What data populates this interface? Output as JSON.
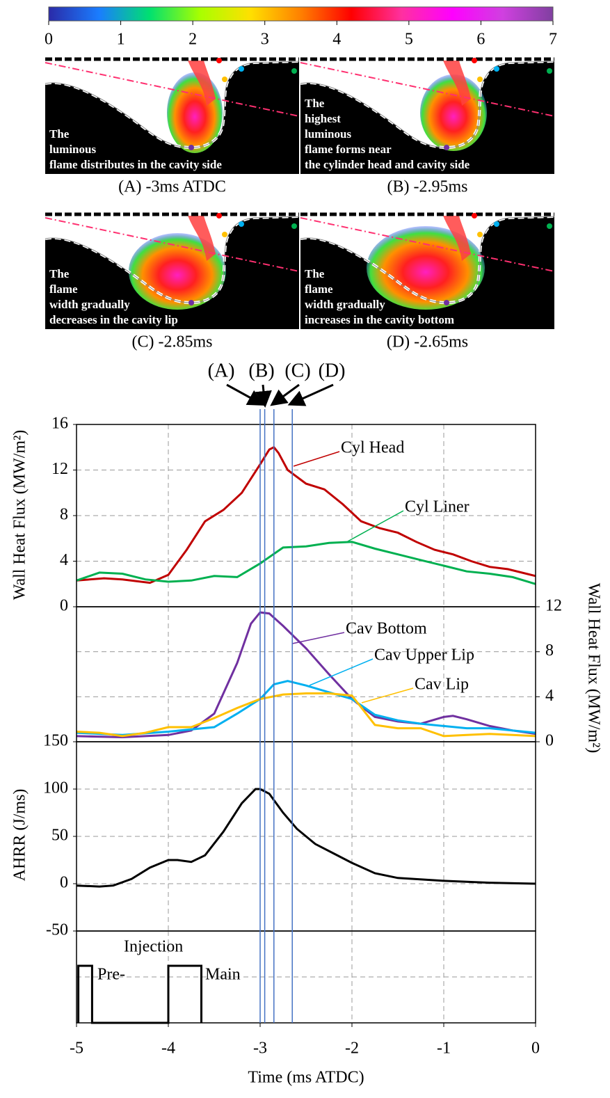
{
  "panels": [
    {
      "caption": "(A) -3ms ATDC",
      "text": [
        "The",
        "luminous",
        "flame distributes in the cavity side"
      ]
    },
    {
      "caption": "(B) -2.95ms",
      "text": [
        "The",
        "highest",
        "luminous",
        "flame forms near",
        "the cylinder head and cavity side"
      ]
    },
    {
      "caption": "(C) -2.85ms",
      "text": [
        "The",
        "flame",
        "width gradually",
        "decreases in the cavity lip"
      ]
    },
    {
      "caption": "(D) -2.65ms",
      "text": [
        "The",
        "flame",
        "width gradually",
        "increases in the cavity bottom"
      ]
    }
  ],
  "chart_data": [
    {
      "type": "colorbar",
      "xlim": [
        0,
        7
      ],
      "xticks": [
        0,
        1,
        2,
        3,
        4,
        5,
        6,
        7
      ],
      "colors": [
        "#2a2aa8",
        "#1a7dff",
        "#00e070",
        "#a8ff00",
        "#ffe000",
        "#ff8000",
        "#ff0000",
        "#ff30a0",
        "#ff00ff",
        "#d040e0",
        "#8040a0"
      ]
    },
    {
      "type": "line",
      "ylabel": "Wall Heat Flux (MW/m²)",
      "ylim": [
        0,
        16
      ],
      "yticks": [
        0,
        4,
        8,
        12,
        16
      ],
      "grid": true,
      "markers": [
        {
          "label": "(A)",
          "x": -3
        },
        {
          "label": "(B)",
          "x": -2.95
        },
        {
          "label": "(C)",
          "x": -2.85
        },
        {
          "label": "(D)",
          "x": -2.65
        }
      ],
      "series": [
        {
          "name": "Cyl Head",
          "color": "#c00000",
          "x": [
            -5,
            -4.7,
            -4.5,
            -4.2,
            -4,
            -3.8,
            -3.6,
            -3.4,
            -3.2,
            -3,
            -2.9,
            -2.85,
            -2.8,
            -2.7,
            -2.5,
            -2.3,
            -2.1,
            -1.9,
            -1.7,
            -1.5,
            -1.3,
            -1.1,
            -0.9,
            -0.7,
            -0.5,
            -0.3,
            0
          ],
          "values": [
            2.3,
            2.5,
            2.4,
            2.1,
            2.8,
            5,
            7.5,
            8.5,
            10,
            12.5,
            13.8,
            14,
            13.5,
            12,
            10.8,
            10.3,
            9,
            7.5,
            6.9,
            6.5,
            5.7,
            5,
            4.6,
            4,
            3.5,
            3.3,
            2.7
          ]
        },
        {
          "name": "Cyl Liner",
          "color": "#00b050",
          "x": [
            -5,
            -4.75,
            -4.5,
            -4.25,
            -4,
            -3.75,
            -3.5,
            -3.25,
            -3,
            -2.75,
            -2.5,
            -2.25,
            -2,
            -1.75,
            -1.5,
            -1.25,
            -1,
            -0.75,
            -0.5,
            -0.25,
            0
          ],
          "values": [
            2.3,
            3,
            2.9,
            2.4,
            2.2,
            2.3,
            2.7,
            2.6,
            3.8,
            5.2,
            5.3,
            5.6,
            5.7,
            5.1,
            4.6,
            4.1,
            3.6,
            3.1,
            2.9,
            2.6,
            2
          ]
        }
      ]
    },
    {
      "type": "line",
      "ylabel": "Wall Heat Flux (MW/m²)",
      "ylim": [
        0,
        12
      ],
      "yticks": [
        0,
        4,
        8,
        12
      ],
      "grid": true,
      "series": [
        {
          "name": "Cav Bottom",
          "color": "#7030a0",
          "x": [
            -5,
            -4.5,
            -4,
            -3.75,
            -3.5,
            -3.25,
            -3.1,
            -3,
            -2.9,
            -2.75,
            -2.5,
            -2.25,
            -2,
            -1.75,
            -1.5,
            -1.25,
            -1,
            -0.9,
            -0.75,
            -0.5,
            -0.25,
            0
          ],
          "values": [
            0.5,
            0.4,
            0.6,
            1,
            2.5,
            7,
            10.5,
            11.5,
            11.4,
            10.3,
            8.3,
            6,
            3.8,
            2.2,
            1.8,
            1.6,
            2.2,
            2.3,
            2,
            1.4,
            1,
            0.7
          ]
        },
        {
          "name": "Cav Upper Lip",
          "color": "#00b0f0",
          "x": [
            -5,
            -4.5,
            -4,
            -3.5,
            -3.25,
            -3,
            -2.85,
            -2.7,
            -2.5,
            -2.25,
            -2,
            -1.75,
            -1.5,
            -1.25,
            -1,
            -0.75,
            -0.5,
            0
          ],
          "values": [
            0.8,
            0.6,
            0.9,
            1.3,
            2.5,
            3.8,
            5.1,
            5.4,
            5,
            4.4,
            3.8,
            2.4,
            1.9,
            1.6,
            1.4,
            1.2,
            1.2,
            0.8
          ]
        },
        {
          "name": "Cav Lip",
          "color": "#ffc000",
          "x": [
            -5,
            -4.75,
            -4.5,
            -4.25,
            -4,
            -3.75,
            -3.5,
            -3.25,
            -3,
            -2.75,
            -2.5,
            -2.25,
            -2,
            -1.75,
            -1.5,
            -1.25,
            -1,
            -0.75,
            -0.5,
            -0.25,
            0
          ],
          "values": [
            0.9,
            0.8,
            0.5,
            0.8,
            1.3,
            1.3,
            2.1,
            3,
            3.8,
            4.2,
            4.3,
            4.3,
            4.1,
            1.5,
            1.2,
            1.2,
            0.5,
            0.6,
            0.7,
            0.6,
            0.5
          ]
        }
      ]
    },
    {
      "type": "line",
      "ylabel": "AHRR (J/ms)",
      "ylim": [
        -50,
        150
      ],
      "yticks": [
        -50,
        0,
        50,
        100,
        150
      ],
      "grid": true,
      "series": [
        {
          "color": "#000000",
          "x": [
            -5,
            -4.75,
            -4.6,
            -4.4,
            -4.2,
            -4,
            -3.9,
            -3.75,
            -3.6,
            -3.4,
            -3.2,
            -3.05,
            -3,
            -2.9,
            -2.75,
            -2.6,
            -2.4,
            -2.2,
            -2,
            -1.75,
            -1.5,
            -1,
            -0.5,
            0
          ],
          "values": [
            -2,
            -3,
            -2,
            5,
            17,
            25,
            25,
            23,
            30,
            55,
            85,
            100,
            100,
            95,
            75,
            58,
            42,
            32,
            22,
            11,
            6,
            3,
            1,
            0
          ]
        }
      ]
    },
    {
      "type": "step",
      "xlabel": "Time (ms ATDC)",
      "xlim": [
        -5,
        0
      ],
      "xticks": [
        -5,
        -4,
        -3,
        -2,
        -1,
        0
      ],
      "grid": true,
      "annotations": [
        "Injection",
        "Pre-",
        "Main"
      ],
      "series": [
        {
          "color": "#000000",
          "x": [
            -4.98,
            -4.98,
            -4.83,
            -4.83,
            -4,
            -4,
            -3.64,
            -3.64
          ],
          "values": [
            0,
            1,
            1,
            0,
            0,
            1,
            1,
            0
          ]
        }
      ]
    }
  ]
}
